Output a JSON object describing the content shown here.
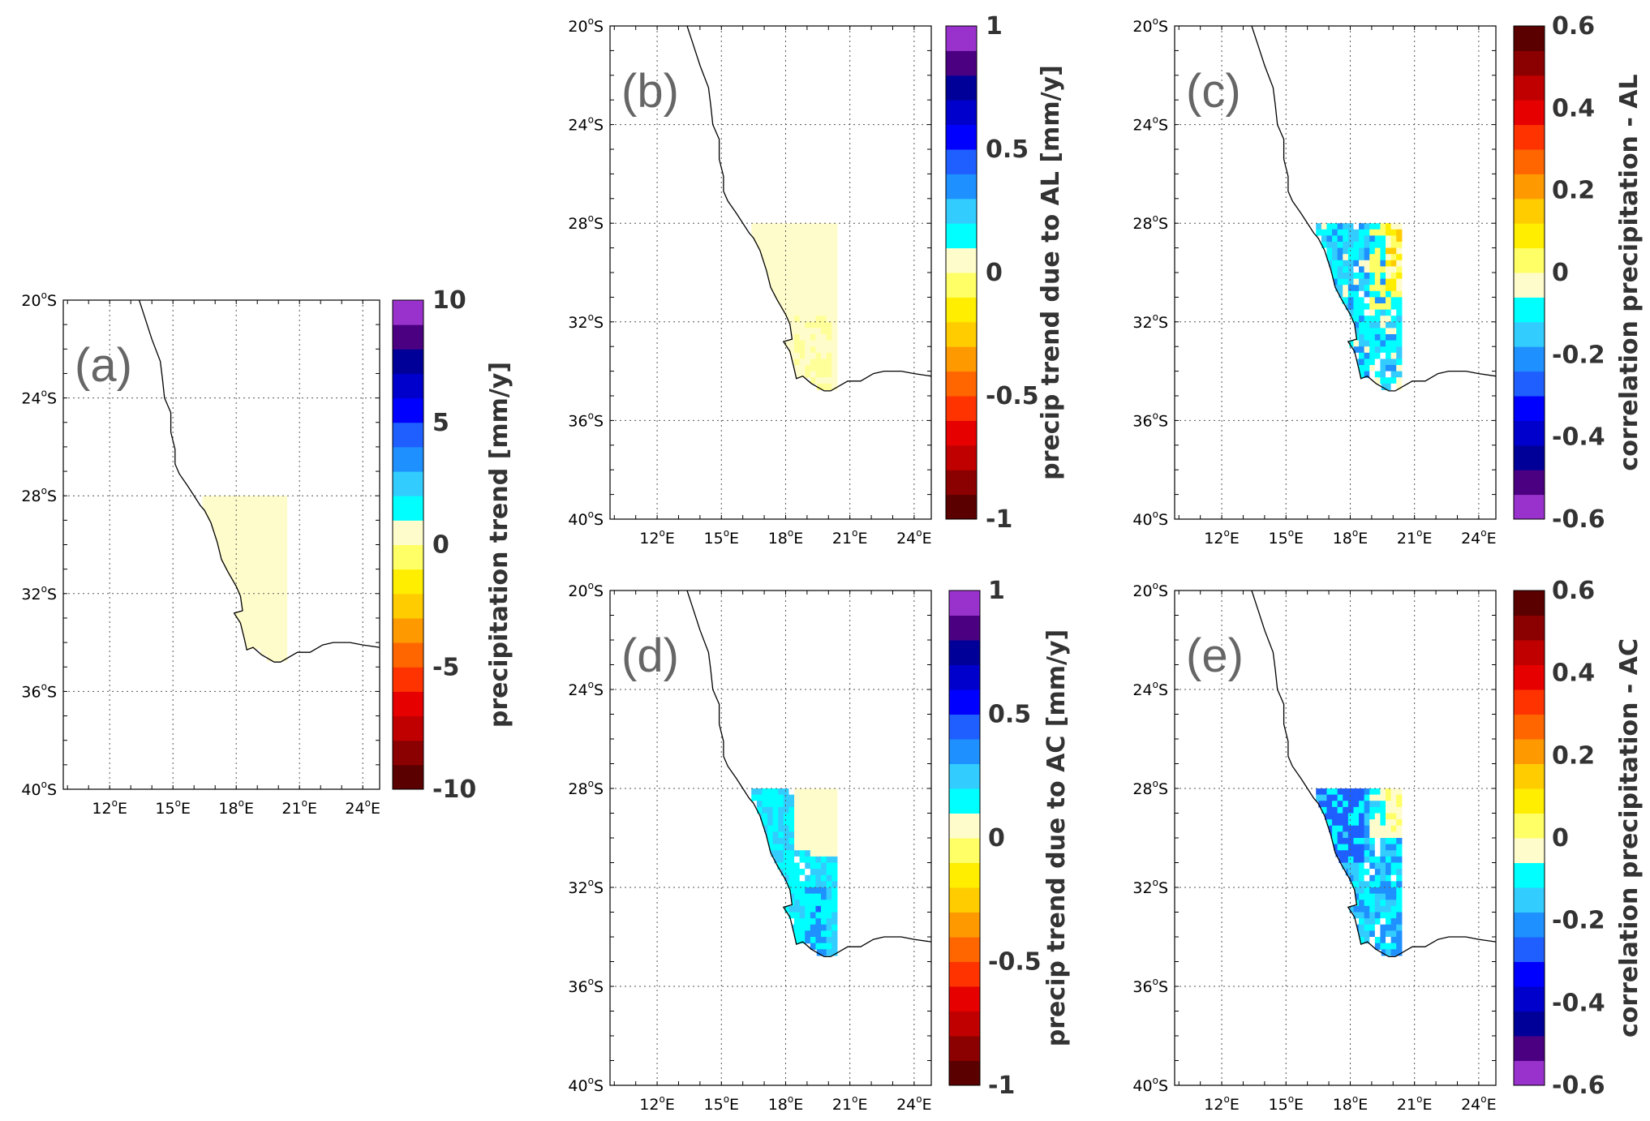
{
  "lat_tick_labels": [
    "20",
    "24",
    "28",
    "32",
    "36",
    "40"
  ],
  "lon_tick_labels": [
    "12",
    "15",
    "18",
    "21",
    "24"
  ],
  "lat_suffix": "S",
  "lon_suffix": "E",
  "degree_mark": "o",
  "lat_values": [
    -20,
    -24,
    -28,
    -32,
    -36,
    -40
  ],
  "lon_values": [
    12,
    15,
    18,
    21,
    24
  ],
  "map_extent": {
    "lon_min": 9.8,
    "lon_max": 24.8,
    "lat_min": -40,
    "lat_max": -20
  },
  "coastline": [
    [
      13.4,
      -20.0
    ],
    [
      13.7,
      -20.8
    ],
    [
      14.0,
      -21.6
    ],
    [
      14.4,
      -22.5
    ],
    [
      14.5,
      -23.2
    ],
    [
      14.6,
      -24.0
    ],
    [
      14.9,
      -24.6
    ],
    [
      14.9,
      -25.4
    ],
    [
      15.1,
      -26.1
    ],
    [
      15.1,
      -26.7
    ],
    [
      15.3,
      -27.1
    ],
    [
      15.7,
      -27.6
    ],
    [
      16.3,
      -28.4
    ],
    [
      16.5,
      -28.6
    ],
    [
      16.8,
      -29.1
    ],
    [
      17.1,
      -29.9
    ],
    [
      17.3,
      -30.6
    ],
    [
      17.6,
      -31.1
    ],
    [
      18.0,
      -31.7
    ],
    [
      18.2,
      -32.1
    ],
    [
      18.3,
      -32.7
    ],
    [
      17.9,
      -32.8
    ],
    [
      18.2,
      -33.2
    ],
    [
      18.4,
      -33.9
    ],
    [
      18.5,
      -34.3
    ],
    [
      18.8,
      -34.2
    ],
    [
      19.2,
      -34.5
    ],
    [
      19.8,
      -34.8
    ],
    [
      20.1,
      -34.8
    ],
    [
      20.9,
      -34.4
    ],
    [
      21.5,
      -34.4
    ],
    [
      22.1,
      -34.1
    ],
    [
      22.6,
      -34.0
    ],
    [
      23.4,
      -34.0
    ],
    [
      24.0,
      -34.1
    ],
    [
      24.8,
      -34.2
    ]
  ],
  "domain_box": {
    "lon_min": 16.4,
    "lon_max": 20.3,
    "lat_min": -34.8,
    "lat_max": -28.0
  },
  "panels": [
    {
      "id": "a",
      "label": "(a)",
      "colorbar_title": "precipitation trend [mm/y]",
      "colorbar_colors": [
        "#5a0000",
        "#8b0000",
        "#c00000",
        "#e60000",
        "#ff3300",
        "#ff6600",
        "#ff9900",
        "#ffcc00",
        "#ffee00",
        "#ffff66",
        "#fffccc",
        "#00ffff",
        "#33ccff",
        "#1e90ff",
        "#1f5fff",
        "#0000ff",
        "#0000cc",
        "#000099",
        "#4b0082",
        "#9932cc"
      ],
      "colorbar_ticks": [
        {
          "label": "10",
          "value": 10
        },
        {
          "label": "5",
          "value": 5
        },
        {
          "label": "0",
          "value": 0
        },
        {
          "label": "-5",
          "value": -5
        },
        {
          "label": "-10",
          "value": -10
        }
      ],
      "colorbar_range": [
        -10,
        10
      ],
      "fill_pattern": "uniform_pale"
    },
    {
      "id": "b",
      "label": "(b)",
      "colorbar_title": "precip trend due to AL [mm/y]",
      "colorbar_colors": [
        "#5a0000",
        "#8b0000",
        "#c00000",
        "#e60000",
        "#ff3300",
        "#ff6600",
        "#ff9900",
        "#ffcc00",
        "#ffee00",
        "#ffff66",
        "#fffccc",
        "#00ffff",
        "#33ccff",
        "#1e90ff",
        "#1f5fff",
        "#0000ff",
        "#0000cc",
        "#000099",
        "#4b0082",
        "#9932cc"
      ],
      "colorbar_ticks": [
        {
          "label": "1",
          "value": 1
        },
        {
          "label": "0.5",
          "value": 0.5
        },
        {
          "label": "0",
          "value": 0
        },
        {
          "label": "-0.5",
          "value": -0.5
        },
        {
          "label": "-1",
          "value": -1
        }
      ],
      "colorbar_range": [
        -1,
        1
      ],
      "fill_pattern": "pale_with_yellow_south"
    },
    {
      "id": "c",
      "label": "(c)",
      "colorbar_title": "correlation precipitation - AL",
      "colorbar_colors": [
        "#9932cc",
        "#4b0082",
        "#000099",
        "#0000cc",
        "#0000ff",
        "#1f5fff",
        "#1e90ff",
        "#33ccff",
        "#00ffff",
        "#fffccc",
        "#ffff66",
        "#ffee00",
        "#ffcc00",
        "#ff9900",
        "#ff6600",
        "#ff3300",
        "#e60000",
        "#c00000",
        "#8b0000",
        "#5a0000"
      ],
      "colorbar_ticks": [
        {
          "label": "0.6",
          "value": 0.6
        },
        {
          "label": "0.4",
          "value": 0.4
        },
        {
          "label": "0.2",
          "value": 0.2
        },
        {
          "label": "0",
          "value": 0
        },
        {
          "label": "-0.2",
          "value": -0.2
        },
        {
          "label": "-0.4",
          "value": -0.4
        },
        {
          "label": "-0.6",
          "value": -0.6
        }
      ],
      "colorbar_range": [
        -0.6,
        0.6
      ],
      "fill_pattern": "corr_al"
    },
    {
      "id": "d",
      "label": "(d)",
      "colorbar_title": "precip trend due to AC [mm/y]",
      "colorbar_colors": [
        "#5a0000",
        "#8b0000",
        "#c00000",
        "#e60000",
        "#ff3300",
        "#ff6600",
        "#ff9900",
        "#ffcc00",
        "#ffee00",
        "#ffff66",
        "#fffccc",
        "#00ffff",
        "#33ccff",
        "#1e90ff",
        "#1f5fff",
        "#0000ff",
        "#0000cc",
        "#000099",
        "#4b0082",
        "#9932cc"
      ],
      "colorbar_ticks": [
        {
          "label": "1",
          "value": 1
        },
        {
          "label": "0.5",
          "value": 0.5
        },
        {
          "label": "0",
          "value": 0
        },
        {
          "label": "-0.5",
          "value": -0.5
        },
        {
          "label": "-1",
          "value": -1
        }
      ],
      "colorbar_range": [
        -1,
        1
      ],
      "fill_pattern": "trend_ac"
    },
    {
      "id": "e",
      "label": "(e)",
      "colorbar_title": "correlation precipitation - AC",
      "colorbar_colors": [
        "#9932cc",
        "#4b0082",
        "#000099",
        "#0000cc",
        "#0000ff",
        "#1f5fff",
        "#1e90ff",
        "#33ccff",
        "#00ffff",
        "#fffccc",
        "#ffff66",
        "#ffee00",
        "#ffcc00",
        "#ff9900",
        "#ff6600",
        "#ff3300",
        "#e60000",
        "#c00000",
        "#8b0000",
        "#5a0000"
      ],
      "colorbar_ticks": [
        {
          "label": "0.6",
          "value": 0.6
        },
        {
          "label": "0.4",
          "value": 0.4
        },
        {
          "label": "0.2",
          "value": 0.2
        },
        {
          "label": "0",
          "value": 0
        },
        {
          "label": "-0.2",
          "value": -0.2
        },
        {
          "label": "-0.4",
          "value": -0.4
        },
        {
          "label": "-0.6",
          "value": -0.6
        }
      ],
      "colorbar_range": [
        -0.6,
        0.6
      ],
      "fill_pattern": "corr_ac"
    }
  ]
}
